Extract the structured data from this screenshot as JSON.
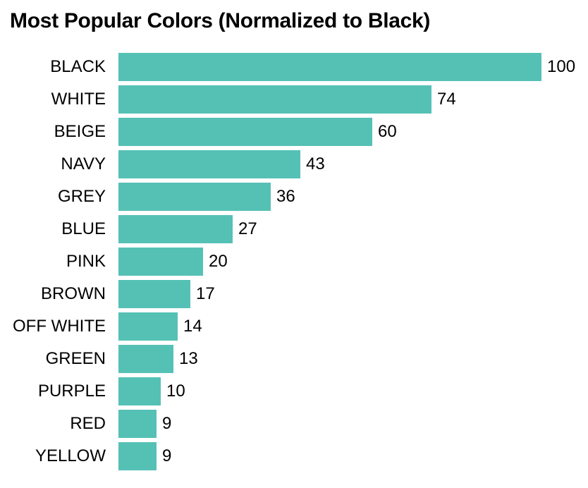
{
  "chart_data": {
    "type": "bar",
    "orientation": "horizontal",
    "title": "Most Popular Colors (Normalized to Black)",
    "categories": [
      "BLACK",
      "WHITE",
      "BEIGE",
      "NAVY",
      "GREY",
      "BLUE",
      "PINK",
      "BROWN",
      "OFF WHITE",
      "GREEN",
      "PURPLE",
      "RED",
      "YELLOW"
    ],
    "values": [
      100,
      74,
      60,
      43,
      36,
      27,
      20,
      17,
      14,
      13,
      10,
      9,
      9
    ],
    "xlim": [
      0,
      100
    ],
    "value_labels_shown": true,
    "grid": false,
    "legend": "none",
    "bar_color": "#55c1b5",
    "text_color": "#000000",
    "background_color": "#ffffff"
  }
}
